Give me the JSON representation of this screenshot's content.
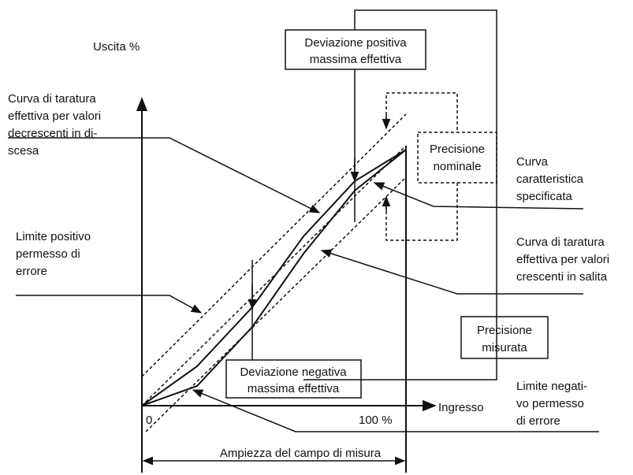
{
  "output_label": "Uscita %",
  "descending_curve": [
    "Curva di taratura",
    "effettiva per valori",
    "decrescenti in di-",
    "scesa"
  ],
  "max_positive_deviation": [
    "Deviazione positiva",
    "massima effettiva"
  ],
  "nominal_accuracy": [
    "Precisione",
    "nominale"
  ],
  "specified_characteristic": [
    "Curva",
    "caratteristica",
    "specificata"
  ],
  "positive_error_limit": [
    "Limite positivo",
    "permesso di",
    "errore"
  ],
  "ascending_curve": [
    "Curva di taratura",
    "effettiva per valori",
    "crescenti in salita"
  ],
  "measured_accuracy": [
    "Precisione",
    "misurata"
  ],
  "max_negative_deviation": [
    "Deviazione negativa",
    "massima effettiva"
  ],
  "negative_error_limit": [
    "Limite negati-",
    "vo permesso",
    "di errore"
  ],
  "axis": {
    "zero": "0",
    "full": "100 %",
    "input": "Ingresso"
  },
  "span_label": "Ampiezza del campo di misura"
}
